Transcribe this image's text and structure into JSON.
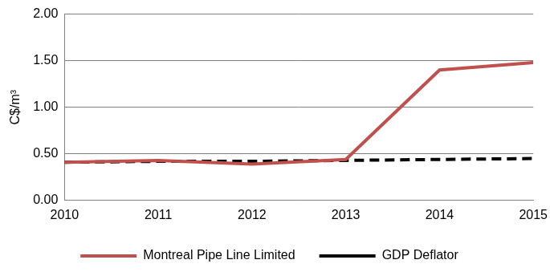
{
  "chart_data": {
    "type": "line",
    "y_label": "C$/m³",
    "categories": [
      "2010",
      "2011",
      "2012",
      "2013",
      "2014",
      "2015"
    ],
    "series": [
      {
        "name": "Montreal Pipe Line Limited",
        "color": "#c0504d",
        "line_style": "solid",
        "values": [
          0.41,
          0.43,
          0.39,
          0.44,
          1.4,
          1.48
        ]
      },
      {
        "name": "GDP Deflator",
        "color": "#000000",
        "line_style": "dashed",
        "values": [
          0.41,
          0.42,
          0.42,
          0.43,
          0.44,
          0.45
        ]
      }
    ],
    "ylim": [
      0,
      2
    ],
    "yticks": [
      {
        "value": 0,
        "label": "0.00"
      },
      {
        "value": 0.5,
        "label": "0.50"
      },
      {
        "value": 1,
        "label": "1.00"
      },
      {
        "value": 1.5,
        "label": "1.50"
      },
      {
        "value": 2,
        "label": "2.00"
      }
    ],
    "grid": true,
    "legend": "bottom"
  }
}
